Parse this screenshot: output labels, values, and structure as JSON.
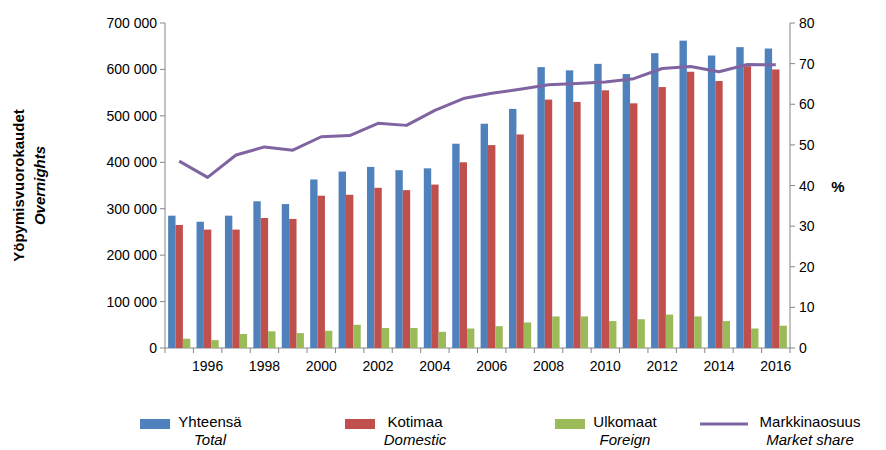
{
  "chart_data": {
    "type": "bar",
    "ylabel": "Yöpymisvuorokaudet",
    "ylabel_en": "Overnights",
    "y2label": "%",
    "categories": [
      null,
      "1996",
      null,
      "1998",
      null,
      "2000",
      null,
      "2002",
      null,
      "2004",
      null,
      "2006",
      null,
      "2008",
      null,
      "2010",
      null,
      "2012",
      null,
      "2014",
      null,
      "2016"
    ],
    "series": [
      {
        "name": "Yhteensä",
        "name_en": "Total",
        "color": "#4f81bd",
        "type": "bar",
        "values": [
          285000,
          272000,
          285000,
          316000,
          310000,
          363000,
          380000,
          390000,
          383000,
          387000,
          440000,
          483000,
          515000,
          605000,
          598000,
          612000,
          590000,
          635000,
          662000,
          630000,
          648000,
          645000
        ]
      },
      {
        "name": "Kotimaa",
        "name_en": "Domestic",
        "color": "#c0504d",
        "type": "bar",
        "values": [
          265000,
          255000,
          255000,
          280000,
          278000,
          328000,
          330000,
          345000,
          340000,
          352000,
          400000,
          437000,
          460000,
          535000,
          530000,
          555000,
          527000,
          562000,
          595000,
          575000,
          607000,
          600000
        ]
      },
      {
        "name": "Ulkomaat",
        "name_en": "Foreign",
        "color": "#9bbb59",
        "type": "bar",
        "values": [
          20000,
          17000,
          30000,
          36000,
          32000,
          37000,
          50000,
          43000,
          43000,
          35000,
          42000,
          47000,
          55000,
          68000,
          68000,
          58000,
          62000,
          72000,
          68000,
          58000,
          42000,
          48000
        ]
      },
      {
        "name": "Markkinaosuus",
        "name_en": "Market share",
        "color": "#8064a2",
        "type": "line",
        "axis": "y2",
        "values": [
          46,
          42,
          47.5,
          49.5,
          48.7,
          52,
          52.3,
          55.3,
          54.8,
          58.5,
          61.4,
          62.7,
          63.7,
          64.8,
          65.1,
          65.5,
          66.3,
          68.8,
          69.3,
          68,
          69.8,
          69.7
        ]
      }
    ],
    "ylim": [
      0,
      700000
    ],
    "yticks": [
      0,
      {
        "value": 100000,
        "label": "100 000"
      },
      {
        "value": 200000,
        "label": "200 000"
      },
      {
        "value": 300000,
        "label": "300 000"
      },
      {
        "value": 400000,
        "label": "400 000"
      },
      {
        "value": 500000,
        "label": "500 000"
      },
      {
        "value": 600000,
        "label": "600 000"
      },
      {
        "value": 700000,
        "label": "700 000"
      }
    ],
    "y2lim": [
      0,
      80
    ],
    "y2ticks": [
      0,
      10,
      20,
      30,
      40,
      50,
      60,
      70,
      80
    ],
    "grid": false,
    "legend": "bottom"
  }
}
